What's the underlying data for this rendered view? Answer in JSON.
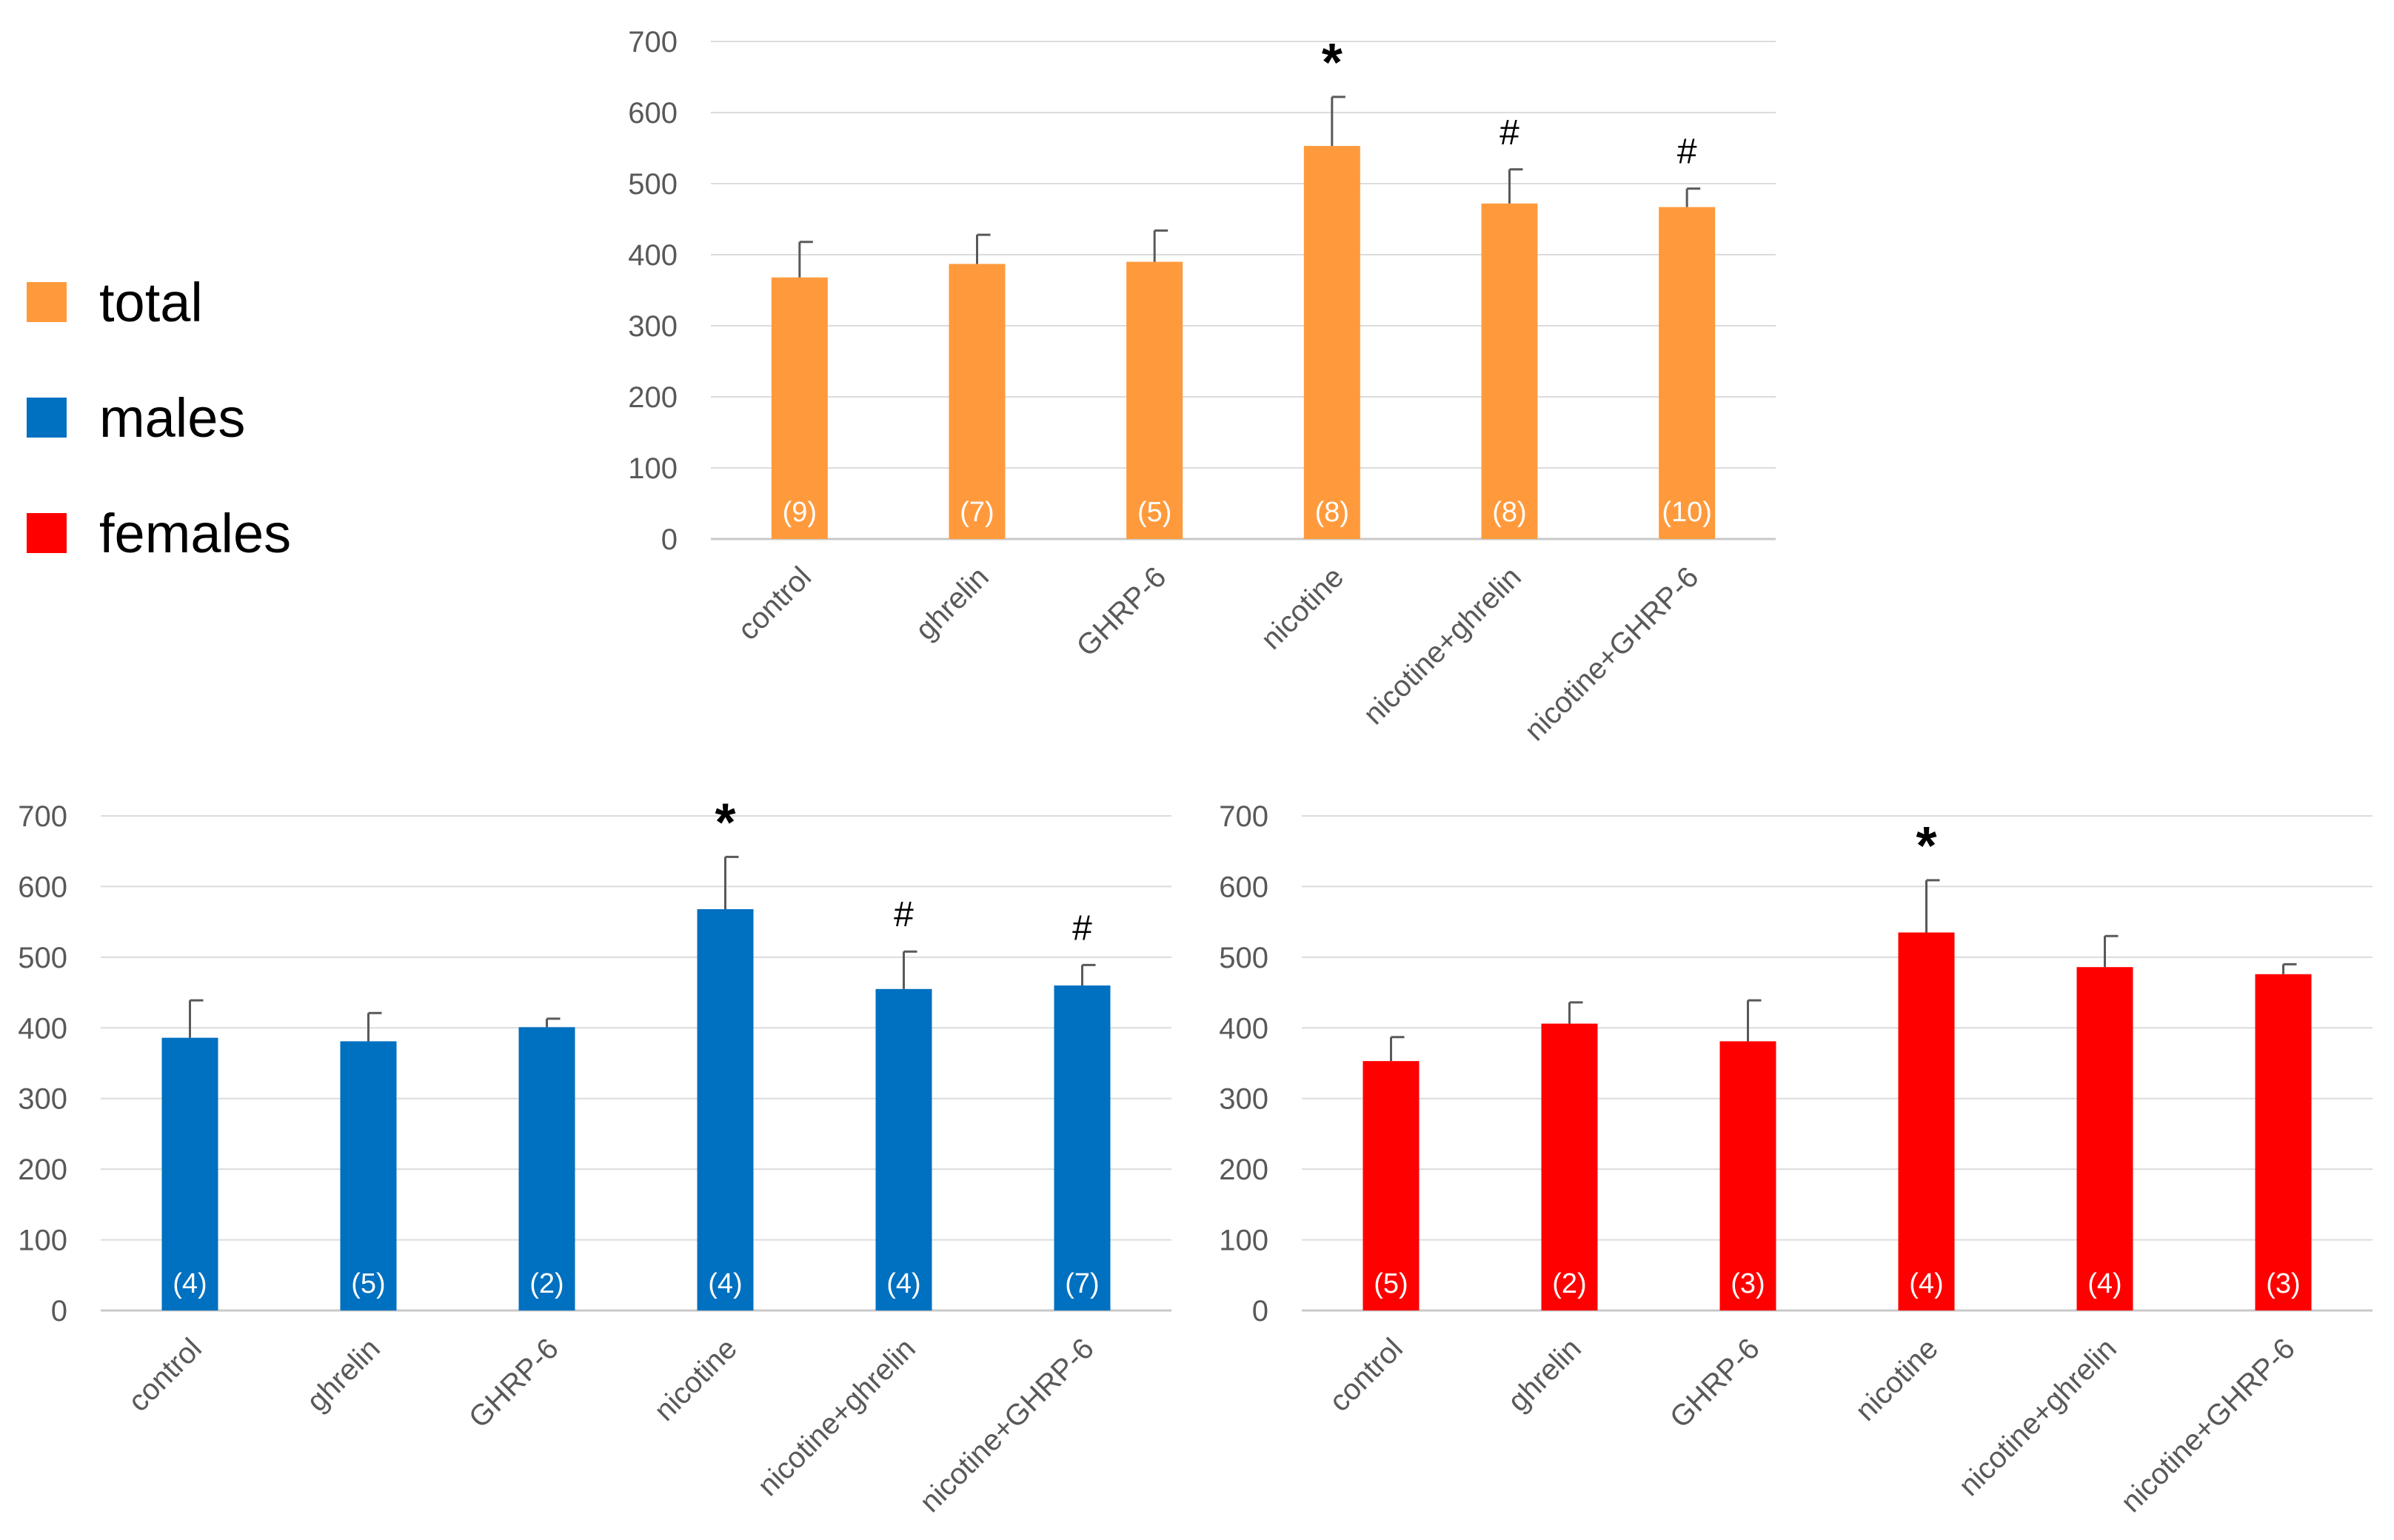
{
  "legend": {
    "items": [
      {
        "label": "total",
        "color": "#FF9A3C"
      },
      {
        "label": "males",
        "color": "#0070C0"
      },
      {
        "label": "females",
        "color": "#FF0000"
      }
    ]
  },
  "chart_data": [
    {
      "type": "bar",
      "name": "total",
      "color": "#FF9A3C",
      "categories": [
        "control",
        "ghrelin",
        "GHRP-6",
        "nicotine",
        "nicotine+ghrelin",
        "nicotine+GHRP-6"
      ],
      "values": [
        368,
        387,
        390,
        553,
        472,
        467
      ],
      "error_upper": [
        418,
        428,
        434,
        622,
        520,
        493
      ],
      "n_labels": [
        "(9)",
        "(7)",
        "(5)",
        "(8)",
        "(8)",
        "(10)"
      ],
      "annotations": [
        "",
        "",
        "",
        "*",
        "#",
        "#"
      ],
      "yticks": [
        "0",
        "100",
        "200",
        "300",
        "400",
        "500",
        "600",
        "700"
      ],
      "ylim": [
        0,
        700
      ],
      "title": "",
      "xlabel": "",
      "ylabel": ""
    },
    {
      "type": "bar",
      "name": "males",
      "color": "#0070C0",
      "categories": [
        "control",
        "ghrelin",
        "GHRP-6",
        "nicotine",
        "nicotine+ghrelin",
        "nicotine+GHRP-6"
      ],
      "values": [
        386,
        381,
        401,
        568,
        455,
        460
      ],
      "error_upper": [
        439,
        421,
        413,
        642,
        508,
        489
      ],
      "n_labels": [
        "(4)",
        "(5)",
        "(2)",
        "(4)",
        "(4)",
        "(7)"
      ],
      "annotations": [
        "",
        "",
        "",
        "*",
        "#",
        "#"
      ],
      "yticks": [
        "0",
        "100",
        "200",
        "300",
        "400",
        "500",
        "600",
        "700"
      ],
      "ylim": [
        0,
        700
      ],
      "title": "",
      "xlabel": "",
      "ylabel": ""
    },
    {
      "type": "bar",
      "name": "females",
      "color": "#FF0000",
      "categories": [
        "control",
        "ghrelin",
        "GHRP-6",
        "nicotine",
        "nicotine+ghrelin",
        "nicotine+GHRP-6"
      ],
      "values": [
        353,
        406,
        381,
        535,
        486,
        476
      ],
      "error_upper": [
        387,
        436,
        439,
        609,
        530,
        490
      ],
      "n_labels": [
        "(5)",
        "(2)",
        "(3)",
        "(4)",
        "(4)",
        "(3)"
      ],
      "annotations": [
        "",
        "",
        "",
        "*",
        "",
        ""
      ],
      "yticks": [
        "0",
        "100",
        "200",
        "300",
        "400",
        "500",
        "600",
        "700"
      ],
      "ylim": [
        0,
        700
      ],
      "title": "",
      "xlabel": "",
      "ylabel": ""
    }
  ]
}
